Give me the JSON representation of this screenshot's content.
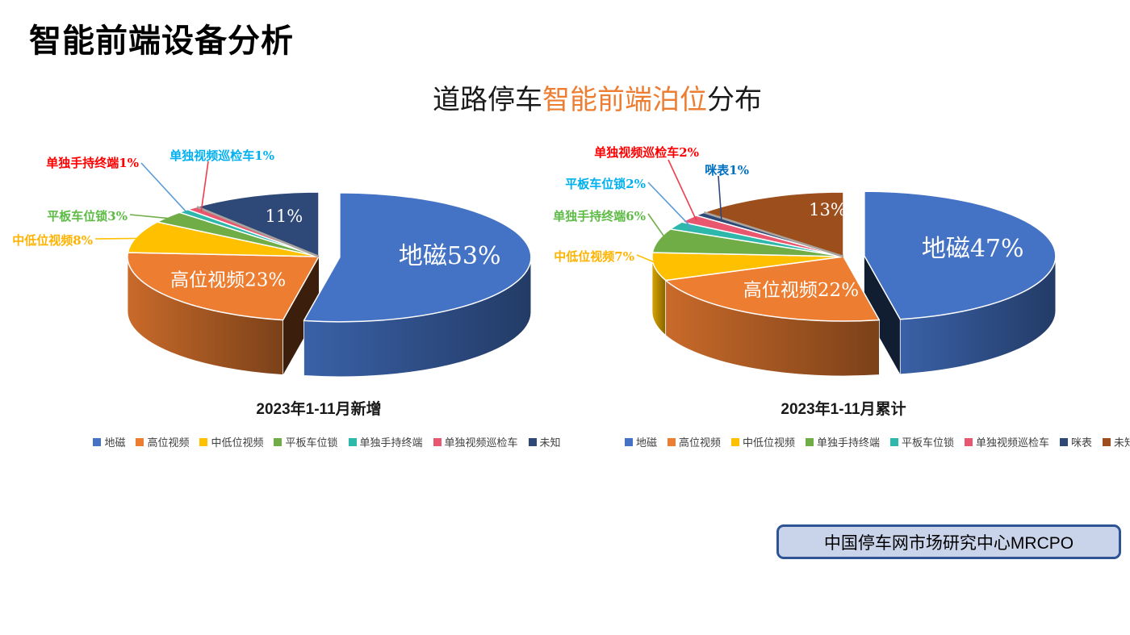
{
  "slide": {
    "title": "智能前端设备分析",
    "chart_title": {
      "prefix": "道路停车",
      "highlight": "智能前端泊位",
      "suffix": "分布",
      "highlight_color": "#ED7D31"
    },
    "source_box": "中国停车网市场研究中心MRCPO"
  },
  "colors": {
    "source_box_bg": "#C9D4EA",
    "source_box_border": "#2F5496",
    "title_color": "#000000"
  },
  "chart_data": [
    {
      "type": "pie",
      "style": "3d-exploded",
      "title": "2023年1-11月新增",
      "unit": "%",
      "legend_position": "bottom",
      "slices": [
        {
          "label": "地磁",
          "value": 53,
          "color": "#4472C4",
          "exploded": true,
          "inner_label": "地磁53%"
        },
        {
          "label": "高位视频",
          "value": 23,
          "color": "#ED7D31",
          "inner_label": "高位视频23%"
        },
        {
          "label": "中低位视频",
          "value": 8,
          "color": "#FFC000",
          "callout": {
            "text": "中低位视频8%",
            "text_color": "#FFB300",
            "line_color": "#FFC000"
          }
        },
        {
          "label": "平板车位锁",
          "value": 3,
          "color": "#70AD47",
          "callout": {
            "text": "平板车位锁3%",
            "text_color": "#5DBB46",
            "line_color": "#70AD47"
          }
        },
        {
          "label": "单独手持终端",
          "value": 1,
          "color": "#2EB8AC",
          "callout": {
            "text": "单独手持终端1%",
            "text_color": "#FF0000",
            "line_color": "#5B9BD5"
          }
        },
        {
          "label": "单独视频巡检车",
          "value": 1,
          "color": "#E8566F",
          "callout": {
            "text": "单独视频巡检车1%",
            "text_color": "#00B0F0",
            "line_color": "#F03C4B"
          }
        },
        {
          "label": "未知",
          "value": 11,
          "color": "#2E4878",
          "inner_label": "11%"
        }
      ]
    },
    {
      "type": "pie",
      "style": "3d-exploded",
      "title": "2023年1-11月累计",
      "unit": "%",
      "legend_position": "bottom",
      "slices": [
        {
          "label": "地磁",
          "value": 47,
          "color": "#4472C4",
          "exploded": true,
          "inner_label": "地磁47%"
        },
        {
          "label": "高位视频",
          "value": 22,
          "color": "#ED7D31",
          "inner_label": "高位视频22%"
        },
        {
          "label": "中低位视频",
          "value": 7,
          "color": "#FFC000",
          "callout": {
            "text": "中低位视频7%",
            "text_color": "#FFB300",
            "line_color": "#FFC000"
          }
        },
        {
          "label": "单独手持终端",
          "value": 6,
          "color": "#70AD47",
          "callout": {
            "text": "单独手持终端6%",
            "text_color": "#5DBB46",
            "line_color": "#70AD47"
          }
        },
        {
          "label": "平板车位锁",
          "value": 2,
          "color": "#2EB8AC",
          "callout": {
            "text": "平板车位锁2%",
            "text_color": "#00B0F0",
            "line_color": "#5B9BD5"
          }
        },
        {
          "label": "单独视频巡检车",
          "value": 2,
          "color": "#E8566F",
          "callout": {
            "text": "单独视频巡检车2%",
            "text_color": "#FF0000",
            "line_color": "#F03C4B"
          }
        },
        {
          "label": "咪表",
          "value": 1,
          "color": "#2E4878",
          "callout": {
            "text": "咪表1%",
            "text_color": "#0070C0",
            "line_color": "#2E4878"
          }
        },
        {
          "label": "未知",
          "value": 13,
          "color": "#9C4F1D",
          "inner_label": "13%"
        }
      ]
    }
  ]
}
